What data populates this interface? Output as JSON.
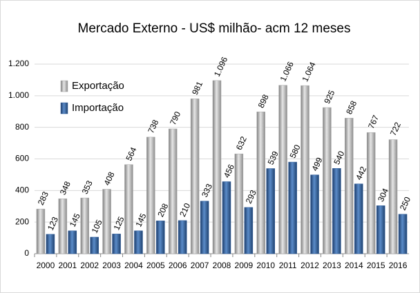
{
  "chart_data": {
    "type": "bar",
    "title": "Mercado Externo - US$ milhão- acm 12 meses",
    "categories": [
      "2000",
      "2001",
      "2002",
      "2003",
      "2004",
      "2005",
      "2006",
      "2007",
      "2008",
      "2009",
      "2010",
      "2011",
      "2012",
      "2013",
      "2014",
      "2015",
      "2016"
    ],
    "series": [
      {
        "name": "Exportação",
        "color": "#a6a6a6",
        "values": [
          283,
          348,
          353,
          408,
          564,
          738,
          790,
          981,
          1096,
          632,
          898,
          1066,
          1064,
          925,
          858,
          767,
          722
        ],
        "value_labels": [
          "283",
          "348",
          "353",
          "408",
          "564",
          "738",
          "790",
          "981",
          "1.096",
          "632",
          "898",
          "1.066",
          "1.064",
          "925",
          "858",
          "767",
          "722"
        ]
      },
      {
        "name": "Importação",
        "color": "#2e5c9a",
        "values": [
          123,
          145,
          105,
          125,
          145,
          208,
          210,
          333,
          456,
          293,
          539,
          580,
          499,
          540,
          442,
          304,
          250
        ]
      }
    ],
    "ylim": [
      0,
      1200
    ],
    "yticks": [
      0,
      200,
      400,
      600,
      800,
      {
        "value": 1000,
        "label": "1.000"
      },
      {
        "value": 1200,
        "label": "1.200"
      }
    ],
    "grid": true
  }
}
